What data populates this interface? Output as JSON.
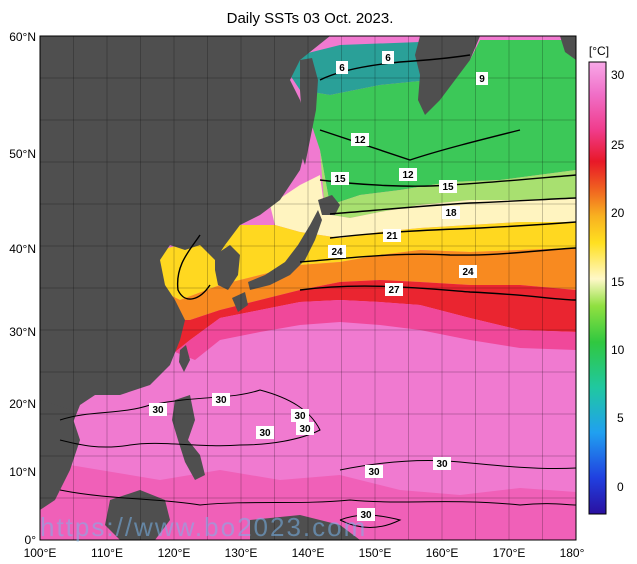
{
  "title": "Daily SSTs 03 Oct. 2023.",
  "watermark": "https://www.bo2023.com",
  "map": {
    "lon_ticks": [
      "100°E",
      "110°E",
      "120°E",
      "130°E",
      "140°E",
      "150°E",
      "160°E",
      "170°E",
      "180°"
    ],
    "lat_ticks": [
      "60°N",
      "50°N",
      "40°N",
      "30°N",
      "20°N",
      "10°N",
      "0°"
    ],
    "contour_labels": [
      "6",
      "6",
      "9",
      "12",
      "12",
      "15",
      "15",
      "18",
      "21",
      "24",
      "24",
      "27",
      "30",
      "30",
      "30",
      "30",
      "30",
      "30",
      "30",
      "30"
    ]
  },
  "colorbar": {
    "unit": "[°C]",
    "ticks": [
      "30",
      "25",
      "20",
      "15",
      "10",
      "5",
      "0"
    ],
    "colors": [
      "#3a1fb0",
      "#2a5cf0",
      "#28b8e0",
      "#2ec86a",
      "#6fdc3a",
      "#c8e84a",
      "#fff7c0",
      "#ffe030",
      "#f8a020",
      "#f04020",
      "#e81030",
      "#f04090",
      "#f070c0",
      "#f8a0e0"
    ]
  },
  "colors": {
    "land": "#4f4f4f",
    "ocean_warm": "#f07ad0",
    "ocean_kuroshio": "#f02b2b"
  }
}
